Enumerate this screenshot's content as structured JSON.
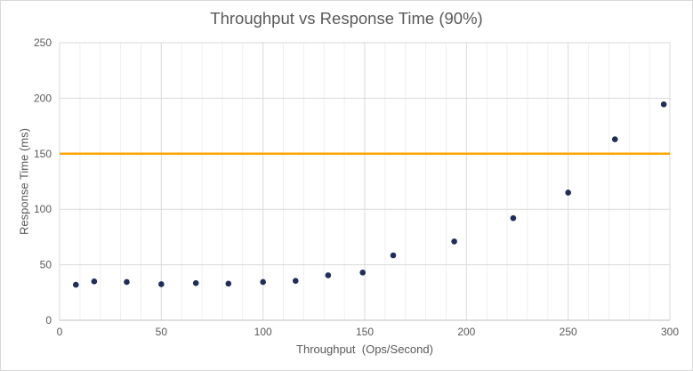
{
  "chart_data": {
    "type": "scatter",
    "title": "Throughput vs Response Time (90%)",
    "xlabel": "Throughput  (Ops/Second)",
    "ylabel": "Response Time (ms)",
    "xlim": [
      0,
      300
    ],
    "ylim": [
      0,
      250
    ],
    "xticks": [
      0,
      50,
      100,
      150,
      200,
      250,
      300
    ],
    "yticks": [
      0,
      50,
      100,
      150,
      200,
      250
    ],
    "x_minor_step": 10,
    "grid": true,
    "series": [
      {
        "values": [
          {
            "x": 8,
            "y": 32
          },
          {
            "x": 17,
            "y": 35
          },
          {
            "x": 33,
            "y": 34.5
          },
          {
            "x": 50,
            "y": 32.5
          },
          {
            "x": 67,
            "y": 33.5
          },
          {
            "x": 83,
            "y": 33
          },
          {
            "x": 100,
            "y": 34.5
          },
          {
            "x": 116,
            "y": 35.5
          },
          {
            "x": 132,
            "y": 40.5
          },
          {
            "x": 149,
            "y": 43
          },
          {
            "x": 164,
            "y": 58.5
          },
          {
            "x": 194,
            "y": 71
          },
          {
            "x": 223,
            "y": 92
          },
          {
            "x": 250,
            "y": 115
          },
          {
            "x": 273,
            "y": 163
          },
          {
            "x": 297,
            "y": 194.5
          }
        ],
        "color": "#1f2d5a"
      }
    ],
    "threshold_line": {
      "y": 150,
      "color": "#ffa500"
    }
  }
}
